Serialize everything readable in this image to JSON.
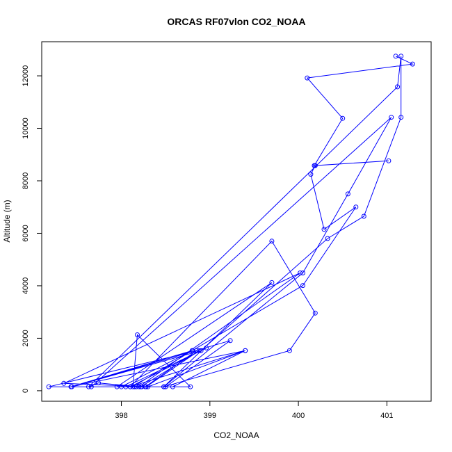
{
  "chart_data": {
    "type": "line",
    "title": "ORCAS RF07vlon CO2_NOAA",
    "xlabel": "CO2_NOAA",
    "ylabel": "Altitude (m)",
    "xlim": [
      397.1,
      401.5
    ],
    "ylim": [
      -400,
      13300
    ],
    "xticks": [
      398,
      399,
      400,
      401
    ],
    "yticks": [
      0,
      2000,
      4000,
      6000,
      8000,
      10000,
      12000
    ],
    "grid": false,
    "color": "#0000ff",
    "markers": "open-circle",
    "series": [
      {
        "x": [
          401.1,
          401.29,
          400.1,
          400.5,
          400.18,
          401.02,
          400.19,
          400.14,
          400.29,
          400.65,
          400.05,
          398.8,
          397.43,
          399.4,
          398.3,
          397.35,
          400.02,
          398.2,
          397.74,
          397.63,
          401.12,
          401.16,
          401.16,
          400.74,
          400.33,
          398.9,
          397.44,
          399.23,
          398.5,
          397.95,
          399.7,
          398.48,
          398.0,
          398.8,
          398.13,
          398.18,
          398.78,
          398.05,
          398.96,
          398.1,
          398.22,
          398.88,
          398.28,
          398.17,
          398.15,
          397.18,
          398.85,
          398.27,
          398.58,
          399.4,
          398.1,
          399.7,
          400.19,
          399.9,
          398.48,
          400.05,
          400.56,
          401.05,
          397.66,
          398.23
        ],
        "y": [
          12750,
          12450,
          11920,
          10380,
          8580,
          8760,
          8580,
          8250,
          6150,
          7000,
          4010,
          1530,
          150,
          1530,
          150,
          280,
          4490,
          150,
          300,
          150,
          11580,
          12750,
          10420,
          6650,
          5800,
          1530,
          150,
          1910,
          150,
          150,
          4120,
          150,
          150,
          1530,
          150,
          2130,
          150,
          150,
          1630,
          150,
          150,
          1530,
          150,
          150,
          150,
          150,
          1530,
          150,
          150,
          1530,
          150,
          5700,
          2960,
          1530,
          150,
          4490,
          7500,
          10420,
          150,
          150
        ]
      }
    ]
  }
}
